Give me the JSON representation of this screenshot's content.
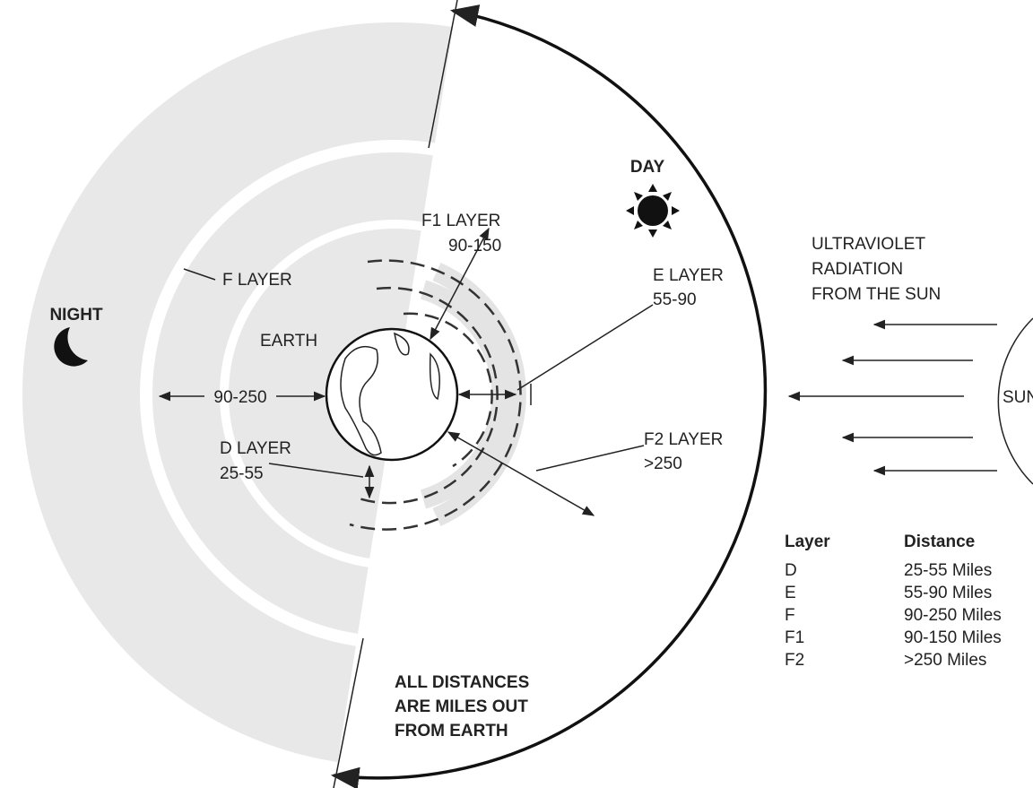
{
  "labels": {
    "day": "DAY",
    "night": "NIGHT",
    "earth": "EARTH",
    "sun": "SUN"
  },
  "layers": {
    "f1": {
      "name": "F1 LAYER",
      "range": "90-150"
    },
    "e": {
      "name": "E LAYER",
      "range": "55-90"
    },
    "f": {
      "name": "F LAYER",
      "range": "90-250"
    },
    "d": {
      "name": "D LAYER",
      "range": "25-55"
    },
    "f2": {
      "name": "F2 LAYER",
      "range": ">250"
    }
  },
  "radiation": [
    "ULTRAVIOLET",
    "RADIATION",
    "FROM THE SUN"
  ],
  "note": [
    "ALL DISTANCES",
    "ARE MILES OUT",
    "FROM EARTH"
  ],
  "table": {
    "header": [
      "Layer",
      "Distance"
    ],
    "rows": [
      [
        "D",
        "25-55 Miles"
      ],
      [
        "E",
        "55-90 Miles"
      ],
      [
        "F",
        "90-250 Miles"
      ],
      [
        "F1",
        "90-150 Miles"
      ],
      [
        "F2",
        ">250 Miles"
      ]
    ]
  }
}
